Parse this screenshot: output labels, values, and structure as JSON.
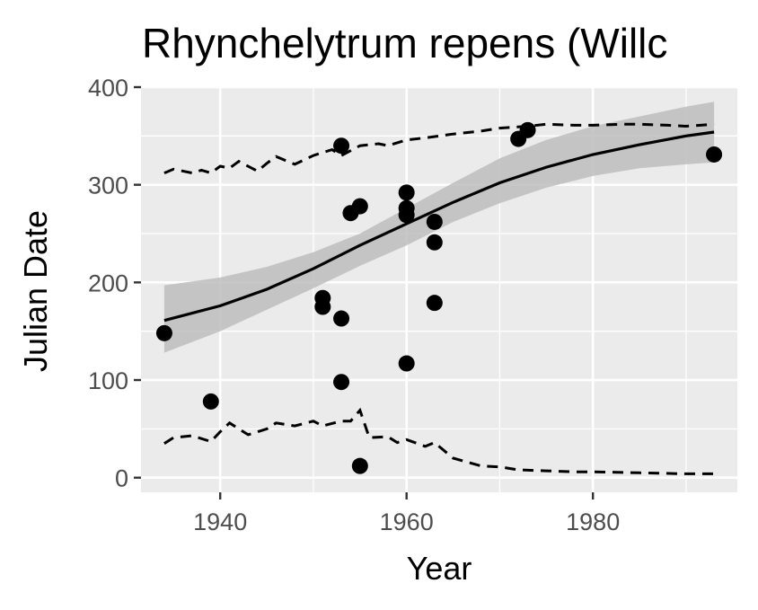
{
  "chart_data": {
    "type": "scatter",
    "title": "Rhynchelytrum repens (Willc",
    "xlabel": "Year",
    "ylabel": "Julian Date",
    "xlim": [
      1931.5,
      1995.5
    ],
    "ylim": [
      -15,
      400
    ],
    "x_ticks": [
      1940,
      1960,
      1980
    ],
    "y_ticks": [
      0,
      100,
      200,
      300,
      400
    ],
    "grid": true,
    "legend": "none",
    "colors": {
      "panel": "#ebebeb",
      "grid": "#ffffff",
      "points": "#000000",
      "band": "#bdbdbd",
      "tick_text": "#4d4d4d"
    },
    "points": [
      {
        "x": 1934,
        "y": 148
      },
      {
        "x": 1939,
        "y": 78
      },
      {
        "x": 1951,
        "y": 184
      },
      {
        "x": 1951,
        "y": 175
      },
      {
        "x": 1953,
        "y": 340
      },
      {
        "x": 1953,
        "y": 163
      },
      {
        "x": 1953,
        "y": 98
      },
      {
        "x": 1954,
        "y": 271
      },
      {
        "x": 1955,
        "y": 278
      },
      {
        "x": 1955,
        "y": 12
      },
      {
        "x": 1960,
        "y": 292
      },
      {
        "x": 1960,
        "y": 276
      },
      {
        "x": 1960,
        "y": 269
      },
      {
        "x": 1960,
        "y": 117
      },
      {
        "x": 1963,
        "y": 262
      },
      {
        "x": 1963,
        "y": 241
      },
      {
        "x": 1963,
        "y": 179
      },
      {
        "x": 1972,
        "y": 347
      },
      {
        "x": 1973,
        "y": 356
      },
      {
        "x": 1993,
        "y": 331
      }
    ],
    "fit_line": {
      "x": [
        1934,
        1940,
        1945,
        1950,
        1955,
        1960,
        1965,
        1970,
        1975,
        1980,
        1985,
        1990,
        1993
      ],
      "y": [
        161,
        176,
        193,
        214,
        238,
        260,
        282,
        302,
        318,
        331,
        341,
        350,
        354
      ]
    },
    "confidence_band": {
      "x": [
        1934,
        1940,
        1945,
        1950,
        1955,
        1960,
        1965,
        1970,
        1975,
        1980,
        1985,
        1990,
        1993
      ],
      "lower": [
        128,
        150,
        172,
        194,
        217,
        238,
        262,
        281,
        297,
        309,
        317,
        321,
        323
      ],
      "upper": [
        197,
        205,
        216,
        231,
        250,
        276,
        302,
        327,
        346,
        360,
        370,
        380,
        385
      ]
    },
    "upper_dashed": {
      "x": [
        1934,
        1935,
        1937,
        1938,
        1939,
        1940,
        1941,
        1942,
        1944,
        1945,
        1946,
        1948,
        1950,
        1952,
        1953,
        1955,
        1957,
        1958,
        1960,
        1962,
        1965,
        1968,
        1970,
        1973,
        1975,
        1978,
        1980,
        1983,
        1985,
        1988,
        1990,
        1993
      ],
      "y": [
        312,
        316,
        312,
        315,
        312,
        319,
        317,
        324,
        314,
        322,
        329,
        321,
        330,
        336,
        330,
        340,
        342,
        340,
        346,
        348,
        352,
        355,
        358,
        360,
        362,
        361,
        361,
        362,
        362,
        361,
        360,
        362
      ]
    },
    "lower_dashed": {
      "x": [
        1934,
        1935,
        1937,
        1939,
        1940,
        1941,
        1943,
        1945,
        1946,
        1948,
        1950,
        1951,
        1953,
        1954,
        1955,
        1956,
        1958,
        1959,
        1960,
        1962,
        1963,
        1965,
        1968,
        1970,
        1972,
        1975,
        1978,
        1980,
        1985,
        1990,
        1993
      ],
      "y": [
        35,
        41,
        43,
        37,
        47,
        56,
        44,
        50,
        56,
        53,
        58,
        53,
        58,
        58,
        69,
        41,
        42,
        36,
        39,
        32,
        36,
        20,
        12,
        11,
        8,
        7,
        6,
        6,
        5,
        4,
        4
      ]
    }
  }
}
